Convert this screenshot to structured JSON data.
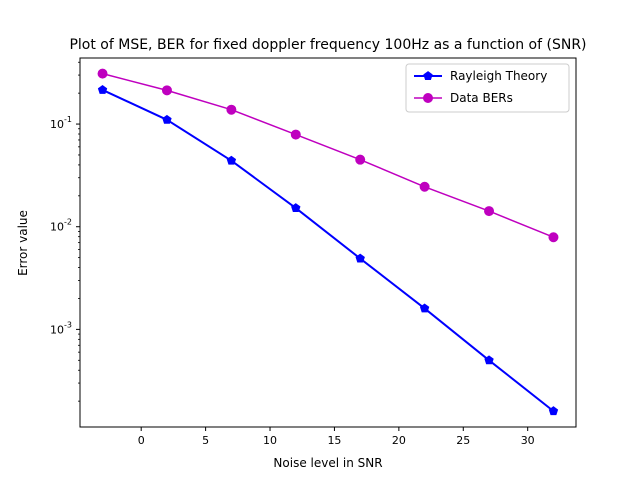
{
  "chart_data": {
    "type": "line",
    "title": "Plot of MSE, BER for fixed doppler frequency 100Hz as a function of (SNR)",
    "xlabel": "Noise level in SNR",
    "ylabel": "Error value",
    "xlim": [
      -4.75,
      33.75
    ],
    "ylim": [
      0.000112,
      0.44
    ],
    "yscale": "log",
    "grid": false,
    "legend_position": "top-right",
    "xticks": [
      0,
      5,
      10,
      15,
      20,
      25,
      30
    ],
    "yticks": [
      {
        "value": 0.001,
        "label": "10^-3"
      },
      {
        "value": 0.01,
        "label": "10^-2"
      },
      {
        "value": 0.1,
        "label": "10^-1"
      }
    ],
    "x": [
      -3,
      2,
      7,
      12,
      17,
      22,
      27,
      32
    ],
    "series": [
      {
        "name": "Rayleigh Theory",
        "color": "#0000ff",
        "marker": "pentagon",
        "values": [
          0.215,
          0.11,
          0.044,
          0.0152,
          0.0049,
          0.0016,
          0.0005,
          0.00016
        ]
      },
      {
        "name": "Data BERs",
        "color": "#bf00bf",
        "marker": "circle",
        "values": [
          0.31,
          0.213,
          0.138,
          0.079,
          0.045,
          0.0245,
          0.0142,
          0.0079
        ]
      }
    ]
  }
}
